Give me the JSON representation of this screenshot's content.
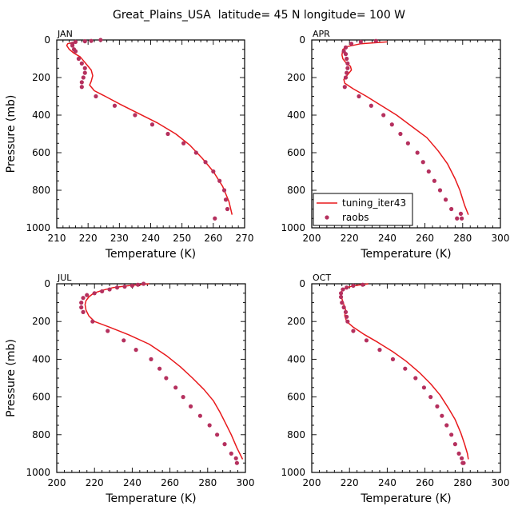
{
  "figure_title": "Great_Plains_USA  latitude= 45 N longitude= 100 W",
  "legend": {
    "line_label": "tuning_iter43",
    "point_label": "raobs"
  },
  "colors": {
    "model_line": "#e8191c",
    "obs_point": "#b5305e"
  },
  "chart_data": [
    {
      "type": "line",
      "panel": "JAN",
      "xlabel": "Temperature (K)",
      "ylabel": "Pressure (mb)",
      "xlim": [
        210,
        270
      ],
      "xticks": [
        210,
        220,
        230,
        240,
        250,
        260,
        270
      ],
      "ylim": [
        0,
        1000
      ],
      "yticks": [
        0,
        200,
        400,
        600,
        800,
        1000
      ],
      "model_line": {
        "name": "tuning_iter43",
        "x": [
          216,
          213.5,
          213.2,
          214,
          215.5,
          217.5,
          218.5,
          219.5,
          221,
          221.5,
          221,
          220.5,
          222,
          225.5,
          230,
          236,
          242,
          248,
          252.5,
          256.5,
          260,
          263,
          265,
          266
        ],
        "y": [
          10,
          20,
          30,
          50,
          70,
          90,
          110,
          130,
          160,
          190,
          220,
          240,
          270,
          300,
          340,
          390,
          440,
          500,
          560,
          630,
          700,
          780,
          860,
          930
        ]
      },
      "obs": {
        "name": "raobs",
        "x": [
          224,
          221,
          219,
          216,
          215,
          215,
          215.5,
          216,
          217,
          218,
          219,
          219,
          218.5,
          218,
          218,
          222.5,
          228.5,
          235,
          240.5,
          245.5,
          250.5,
          254.5,
          257.5,
          260,
          262,
          263.5,
          264,
          264.5,
          260.5
        ],
        "y": [
          0,
          5,
          7,
          10,
          20,
          30,
          50,
          60,
          100,
          125,
          150,
          175,
          200,
          225,
          250,
          300,
          350,
          400,
          450,
          500,
          550,
          600,
          650,
          700,
          750,
          800,
          850,
          900,
          950
        ]
      }
    },
    {
      "type": "line",
      "panel": "APR",
      "xlabel": "Temperature (K)",
      "ylabel": "Pressure (mb)",
      "xlim": [
        200,
        300
      ],
      "xticks": [
        200,
        220,
        240,
        260,
        280,
        300
      ],
      "ylim": [
        0,
        1000
      ],
      "yticks": [
        0,
        200,
        400,
        600,
        800,
        1000
      ],
      "model_line": {
        "name": "tuning_iter43",
        "x": [
          240,
          226,
          219,
          216.5,
          216,
          216.5,
          218,
          220.5,
          221,
          219,
          217,
          217.5,
          222,
          229,
          237,
          245,
          253,
          261,
          267,
          272,
          276,
          278.5,
          281,
          283
        ],
        "y": [
          10,
          20,
          35,
          50,
          80,
          100,
          120,
          140,
          160,
          185,
          210,
          230,
          260,
          300,
          350,
          400,
          460,
          520,
          590,
          660,
          740,
          800,
          880,
          930
        ]
      },
      "obs": {
        "name": "raobs",
        "x": [
          234,
          226,
          221,
          218,
          217,
          218,
          218.5,
          219,
          219,
          218.5,
          218,
          217.5,
          225,
          231.5,
          238,
          242.5,
          247,
          251,
          256,
          259,
          262,
          265,
          268,
          271,
          274,
          277,
          279,
          279.5
        ],
        "y": [
          5,
          10,
          20,
          40,
          60,
          75,
          100,
          125,
          150,
          175,
          200,
          250,
          300,
          350,
          400,
          450,
          500,
          550,
          600,
          650,
          700,
          750,
          800,
          850,
          900,
          950,
          925,
          950
        ]
      }
    },
    {
      "type": "line",
      "panel": "JUL",
      "xlabel": "Temperature (K)",
      "ylabel": "Pressure (mb)",
      "xlim": [
        200,
        300
      ],
      "xticks": [
        200,
        220,
        240,
        260,
        280,
        300
      ],
      "ylim": [
        0,
        1000
      ],
      "yticks": [
        0,
        200,
        400,
        600,
        800,
        1000
      ],
      "model_line": {
        "name": "tuning_iter43",
        "x": [
          249,
          238,
          230,
          224,
          219.5,
          217,
          215.5,
          215,
          215.5,
          217,
          220,
          228,
          238,
          249,
          258,
          265.5,
          272,
          278,
          283,
          286.5,
          289.5,
          292.5,
          295.5,
          298.5
        ],
        "y": [
          0,
          10,
          20,
          35,
          50,
          70,
          90,
          110,
          140,
          170,
          200,
          230,
          270,
          320,
          380,
          440,
          500,
          560,
          620,
          680,
          740,
          800,
          870,
          930
        ]
      },
      "obs": {
        "name": "raobs",
        "x": [
          246,
          243,
          240,
          236,
          232,
          228,
          224,
          220,
          216,
          214,
          213,
          213,
          214,
          219,
          227,
          235.5,
          242,
          250,
          254.5,
          258,
          263,
          267,
          271,
          276,
          281,
          285,
          289,
          292.5,
          295,
          295.5
        ],
        "y": [
          0,
          5,
          10,
          15,
          20,
          30,
          40,
          50,
          60,
          75,
          100,
          125,
          150,
          200,
          250,
          300,
          350,
          400,
          450,
          500,
          550,
          600,
          650,
          700,
          750,
          800,
          850,
          900,
          925,
          950
        ]
      }
    },
    {
      "type": "line",
      "panel": "OCT",
      "xlabel": "Temperature (K)",
      "ylabel": "Pressure (mb)",
      "xlim": [
        200,
        300
      ],
      "xticks": [
        200,
        220,
        240,
        260,
        280,
        300
      ],
      "ylim": [
        0,
        1000
      ],
      "yticks": [
        0,
        200,
        400,
        600,
        800,
        1000
      ],
      "model_line": {
        "name": "tuning_iter43",
        "x": [
          230,
          222.5,
          218.5,
          216,
          215.5,
          216,
          217,
          218,
          217.5,
          218.5,
          222,
          228,
          235,
          243,
          250,
          257,
          263,
          268,
          272.5,
          276,
          279,
          281,
          282.5,
          283
        ],
        "y": [
          0,
          10,
          20,
          35,
          55,
          80,
          110,
          140,
          170,
          200,
          230,
          270,
          310,
          360,
          410,
          470,
          530,
          590,
          660,
          720,
          790,
          850,
          900,
          930
        ]
      },
      "obs": {
        "name": "raobs",
        "x": [
          227,
          222,
          218.5,
          216.5,
          215.5,
          215.5,
          216,
          217,
          218,
          218.5,
          219,
          222,
          229,
          236,
          243,
          249.5,
          255,
          259.5,
          263,
          266.5,
          269,
          271.5,
          274,
          276,
          278,
          279.5,
          280,
          280.5
        ],
        "y": [
          5,
          10,
          20,
          30,
          50,
          70,
          100,
          125,
          150,
          175,
          200,
          250,
          300,
          350,
          400,
          450,
          500,
          550,
          600,
          650,
          700,
          750,
          800,
          850,
          900,
          925,
          950,
          950
        ]
      }
    }
  ]
}
